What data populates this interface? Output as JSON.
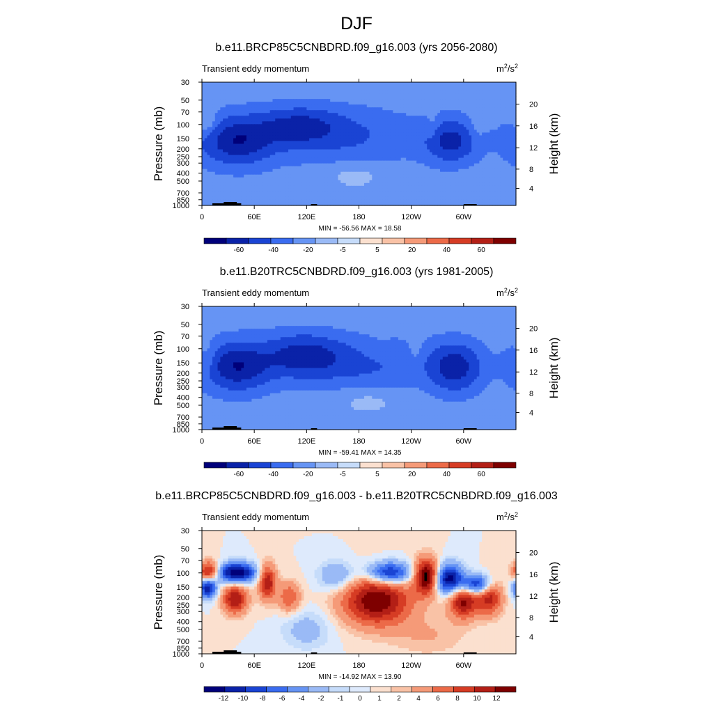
{
  "figure": {
    "title": "DJF"
  },
  "chart_data": [
    {
      "type": "heatmap",
      "title": "b.e11.BRCP85C5CNBDRD.f09_g16.003 (yrs 2056-2080)",
      "subtitle_left": "Transient eddy momentum",
      "units": "m2/s2",
      "units_base": "m",
      "units_exp1": "2",
      "units_mid": "/s",
      "units_exp2": "2",
      "ylabel": "Pressure (mb)",
      "ylabel_right": "Height (km)",
      "x_ticks": [
        "0",
        "60E",
        "120E",
        "180",
        "120W",
        "60W"
      ],
      "x_tick_lon": [
        0,
        60,
        120,
        180,
        240,
        300
      ],
      "y_ticks": [
        "30",
        "50",
        "70",
        "100",
        "150",
        "200",
        "250",
        "300",
        "400",
        "500",
        "700",
        "850",
        "1000"
      ],
      "y_tick_p": [
        30,
        50,
        70,
        100,
        150,
        200,
        250,
        300,
        400,
        500,
        700,
        850,
        1000
      ],
      "height_ticks": [
        "4",
        "8",
        "12",
        "16",
        "20"
      ],
      "height_tick_p": [
        616,
        356,
        194,
        104,
        56
      ],
      "min_max_label": "MIN = -56.56  MAX =  18.58",
      "min": -56.56,
      "max": 18.58,
      "colorbar_levels": [
        "-60",
        "-40",
        "-20",
        "-5",
        "5",
        "20",
        "40",
        "60"
      ],
      "colorbar_colors": [
        "#00007a",
        "#0a22a8",
        "#1a44d4",
        "#3a6cf0",
        "#6694f4",
        "#9abaf6",
        "#c6dcfa",
        "#fbe0cf",
        "#f9c2a6",
        "#f59a78",
        "#ec6a48",
        "#d63c24",
        "#b31f16",
        "#7e0000"
      ],
      "features": [
        {
          "lon": 40,
          "p": 160,
          "value": -56.56,
          "wlon": 28,
          "wp": 0.45
        },
        {
          "lon": 110,
          "p": 105,
          "value": -42,
          "wlon": 32,
          "wp": 0.35
        },
        {
          "lon": 160,
          "p": 140,
          "value": -22,
          "wlon": 60,
          "wp": 0.5
        },
        {
          "lon": 285,
          "p": 160,
          "value": -48,
          "wlon": 20,
          "wp": 0.4
        },
        {
          "lon": 8,
          "p": 100,
          "value": 18.58,
          "wlon": 8,
          "wp": 0.25
        },
        {
          "lon": 265,
          "p": 120,
          "value": 12,
          "wlon": 6,
          "wp": 0.35
        },
        {
          "lon": 315,
          "p": 110,
          "value": 10,
          "wlon": 6,
          "wp": 0.3
        },
        {
          "lon": 175,
          "p": 420,
          "value": 9,
          "wlon": 25,
          "wp": 0.3
        }
      ]
    },
    {
      "type": "heatmap",
      "title": "b.e11.B20TRC5CNBDRD.f09_g16.003 (yrs 1981-2005)",
      "subtitle_left": "Transient eddy momentum",
      "units": "m2/s2",
      "units_base": "m",
      "units_exp1": "2",
      "units_mid": "/s",
      "units_exp2": "2",
      "ylabel": "Pressure (mb)",
      "ylabel_right": "Height (km)",
      "x_ticks": [
        "0",
        "60E",
        "120E",
        "180",
        "120W",
        "60W"
      ],
      "x_tick_lon": [
        0,
        60,
        120,
        180,
        240,
        300
      ],
      "y_ticks": [
        "30",
        "50",
        "70",
        "100",
        "150",
        "200",
        "250",
        "300",
        "400",
        "500",
        "700",
        "850",
        "1000"
      ],
      "y_tick_p": [
        30,
        50,
        70,
        100,
        150,
        200,
        250,
        300,
        400,
        500,
        700,
        850,
        1000
      ],
      "height_ticks": [
        "4",
        "8",
        "12",
        "16",
        "20"
      ],
      "height_tick_p": [
        616,
        356,
        194,
        104,
        56
      ],
      "min_max_label": "MIN = -59.41  MAX =  14.35",
      "min": -59.41,
      "max": 14.35,
      "colorbar_levels": [
        "-60",
        "-40",
        "-20",
        "-5",
        "5",
        "20",
        "40",
        "60"
      ],
      "colorbar_colors": [
        "#00007a",
        "#0a22a8",
        "#1a44d4",
        "#3a6cf0",
        "#6694f4",
        "#9abaf6",
        "#c6dcfa",
        "#fbe0cf",
        "#f9c2a6",
        "#f59a78",
        "#ec6a48",
        "#d63c24",
        "#b31f16",
        "#7e0000"
      ],
      "features": [
        {
          "lon": 40,
          "p": 165,
          "value": -59.41,
          "wlon": 26,
          "wp": 0.45
        },
        {
          "lon": 115,
          "p": 120,
          "value": -45,
          "wlon": 30,
          "wp": 0.4
        },
        {
          "lon": 180,
          "p": 150,
          "value": -25,
          "wlon": 55,
          "wp": 0.45
        },
        {
          "lon": 290,
          "p": 170,
          "value": -52,
          "wlon": 20,
          "wp": 0.45
        },
        {
          "lon": 8,
          "p": 130,
          "value": 14.35,
          "wlon": 7,
          "wp": 0.3
        },
        {
          "lon": 245,
          "p": 120,
          "value": 10,
          "wlon": 6,
          "wp": 0.35
        },
        {
          "lon": 200,
          "p": 110,
          "value": 8,
          "wlon": 14,
          "wp": 0.25
        },
        {
          "lon": 190,
          "p": 450,
          "value": 8,
          "wlon": 25,
          "wp": 0.3
        }
      ]
    },
    {
      "type": "heatmap",
      "title": "b.e11.BRCP85C5CNBDRD.f09_g16.003 - b.e11.B20TRC5CNBDRD.f09_g16.003",
      "subtitle_left": "Transient eddy momentum",
      "units": "m2/s2",
      "units_base": "m",
      "units_exp1": "2",
      "units_mid": "/s",
      "units_exp2": "2",
      "ylabel": "Pressure (mb)",
      "ylabel_right": "Height (km)",
      "x_ticks": [
        "0",
        "60E",
        "120E",
        "180",
        "120W",
        "60W"
      ],
      "x_tick_lon": [
        0,
        60,
        120,
        180,
        240,
        300
      ],
      "y_ticks": [
        "30",
        "50",
        "70",
        "100",
        "150",
        "200",
        "250",
        "300",
        "400",
        "500",
        "700",
        "850",
        "1000"
      ],
      "y_tick_p": [
        30,
        50,
        70,
        100,
        150,
        200,
        250,
        300,
        400,
        500,
        700,
        850,
        1000
      ],
      "height_ticks": [
        "4",
        "8",
        "12",
        "16",
        "20"
      ],
      "height_tick_p": [
        616,
        356,
        194,
        104,
        56
      ],
      "min_max_label": "MIN = -14.92  MAX =  13.90",
      "min": -14.92,
      "max": 13.9,
      "colorbar_levels": [
        "-12",
        "-10",
        "-8",
        "-6",
        "-4",
        "-2",
        "-1",
        "0",
        "1",
        "2",
        "4",
        "6",
        "8",
        "10",
        "12"
      ],
      "colorbar_colors": [
        "#00007a",
        "#0a22a8",
        "#1a44d4",
        "#3a6cf0",
        "#6694f4",
        "#9abaf6",
        "#c6dcfa",
        "#deeafc",
        "#fbe0cf",
        "#f9c2a6",
        "#f59a78",
        "#ec6a48",
        "#d63c24",
        "#b31f16",
        "#7e0000"
      ],
      "features": [
        {
          "lon": 8,
          "p": 100,
          "value": 11,
          "wlon": 8,
          "wp": 0.22
        },
        {
          "lon": 7,
          "p": 150,
          "value": -13,
          "wlon": 7,
          "wp": 0.22
        },
        {
          "lon": 40,
          "p": 100,
          "value": -14.92,
          "wlon": 15,
          "wp": 0.2
        },
        {
          "lon": 38,
          "p": 210,
          "value": 10,
          "wlon": 10,
          "wp": 0.3
        },
        {
          "lon": 75,
          "p": 130,
          "value": 10,
          "wlon": 7,
          "wp": 0.35
        },
        {
          "lon": 100,
          "p": 200,
          "value": 6,
          "wlon": 9,
          "wp": 0.3
        },
        {
          "lon": 155,
          "p": 110,
          "value": -5,
          "wlon": 15,
          "wp": 0.3
        },
        {
          "lon": 200,
          "p": 220,
          "value": 12,
          "wlon": 28,
          "wp": 0.5
        },
        {
          "lon": 215,
          "p": 100,
          "value": -12,
          "wlon": 18,
          "wp": 0.22
        },
        {
          "lon": 258,
          "p": 110,
          "value": 13.9,
          "wlon": 10,
          "wp": 0.35
        },
        {
          "lon": 283,
          "p": 120,
          "value": -14,
          "wlon": 12,
          "wp": 0.3
        },
        {
          "lon": 300,
          "p": 220,
          "value": 11,
          "wlon": 12,
          "wp": 0.35
        },
        {
          "lon": 330,
          "p": 200,
          "value": 9,
          "wlon": 10,
          "wp": 0.35
        },
        {
          "lon": 315,
          "p": 140,
          "value": -12,
          "wlon": 12,
          "wp": 0.2
        },
        {
          "lon": 120,
          "p": 500,
          "value": -3,
          "wlon": 20,
          "wp": 0.4
        },
        {
          "lon": 260,
          "p": 600,
          "value": 2,
          "wlon": 30,
          "wp": 0.4
        }
      ]
    }
  ]
}
